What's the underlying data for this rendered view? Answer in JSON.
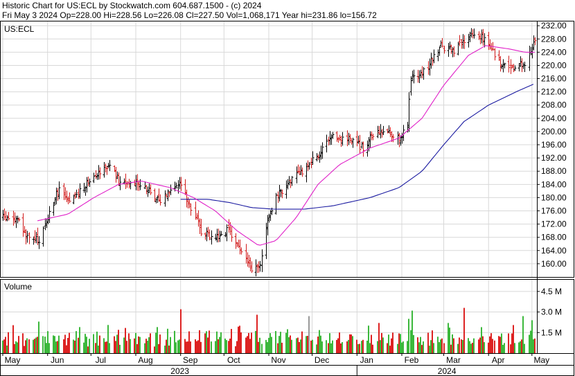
{
  "header": {
    "line1": "Historic Chart for US:ECL by Stockwatch.com 604.687.1500 - (c) 2024",
    "line2": "Fri May  3 2024   Op=228.00   Hi=228.56   Lo=226.08   Cl=227.50   Vol=1,068,171   Year hi=231.86   lo=156.72"
  },
  "chart_data": {
    "type": "ohlc",
    "symbol_label": "US:ECL",
    "volume_label": "Volume",
    "price_ticks": [
      232,
      228,
      224,
      220,
      216,
      212,
      208,
      204,
      200,
      196,
      192,
      188,
      184,
      180,
      176,
      172,
      168,
      164,
      160
    ],
    "price_range": [
      156,
      233.5
    ],
    "volume_ticks": [
      "4.5 M",
      "3.0 M",
      "1.5 M"
    ],
    "volume_tick_values": [
      4.5,
      3.0,
      1.5
    ],
    "volume_range": [
      0,
      5.4
    ],
    "months": [
      "May",
      "Jun",
      "Jul",
      "Aug",
      "Sep",
      "Oct",
      "Nov",
      "Dec",
      "Jan",
      "Feb",
      "Mar",
      "Apr",
      "May"
    ],
    "years": [
      "2023",
      "2024"
    ],
    "price_anchors": [
      {
        "date": "2023-05-01",
        "close": 174
      },
      {
        "date": "2023-05-12",
        "close": 173
      },
      {
        "date": "2023-05-17",
        "close": 168
      },
      {
        "date": "2023-05-26",
        "close": 167
      },
      {
        "date": "2023-06-01",
        "close": 174
      },
      {
        "date": "2023-06-09",
        "close": 183
      },
      {
        "date": "2023-06-16",
        "close": 178
      },
      {
        "date": "2023-06-23",
        "close": 182
      },
      {
        "date": "2023-07-03",
        "close": 187
      },
      {
        "date": "2023-07-14",
        "close": 190
      },
      {
        "date": "2023-07-21",
        "close": 184
      },
      {
        "date": "2023-08-01",
        "close": 185
      },
      {
        "date": "2023-08-10",
        "close": 182
      },
      {
        "date": "2023-08-18",
        "close": 179
      },
      {
        "date": "2023-08-25",
        "close": 183
      },
      {
        "date": "2023-09-01",
        "close": 184
      },
      {
        "date": "2023-09-08",
        "close": 177
      },
      {
        "date": "2023-09-15",
        "close": 170
      },
      {
        "date": "2023-09-25",
        "close": 168
      },
      {
        "date": "2023-10-03",
        "close": 170
      },
      {
        "date": "2023-10-10",
        "close": 166
      },
      {
        "date": "2023-10-20",
        "close": 158
      },
      {
        "date": "2023-10-26",
        "close": 159
      },
      {
        "date": "2023-10-30",
        "close": 172
      },
      {
        "date": "2023-11-06",
        "close": 180
      },
      {
        "date": "2023-11-13",
        "close": 184
      },
      {
        "date": "2023-11-24",
        "close": 188
      },
      {
        "date": "2023-12-05",
        "close": 193
      },
      {
        "date": "2023-12-15",
        "close": 198
      },
      {
        "date": "2023-12-27",
        "close": 198
      },
      {
        "date": "2024-01-05",
        "close": 195
      },
      {
        "date": "2024-01-12",
        "close": 199
      },
      {
        "date": "2024-01-22",
        "close": 200
      },
      {
        "date": "2024-01-30",
        "close": 198
      },
      {
        "date": "2024-02-05",
        "close": 202
      },
      {
        "date": "2024-02-07",
        "close": 216
      },
      {
        "date": "2024-02-16",
        "close": 218
      },
      {
        "date": "2024-02-28",
        "close": 226
      },
      {
        "date": "2024-03-08",
        "close": 224
      },
      {
        "date": "2024-03-18",
        "close": 229
      },
      {
        "date": "2024-03-27",
        "close": 229
      },
      {
        "date": "2024-04-03",
        "close": 225
      },
      {
        "date": "2024-04-10",
        "close": 220
      },
      {
        "date": "2024-04-19",
        "close": 219
      },
      {
        "date": "2024-04-26",
        "close": 221
      },
      {
        "date": "2024-05-01",
        "close": 226
      },
      {
        "date": "2024-05-03",
        "close": 227.5
      }
    ],
    "ma_short_anchors": [
      {
        "date": "2023-05-25",
        "value": 173
      },
      {
        "date": "2023-06-15",
        "value": 175
      },
      {
        "date": "2023-07-03",
        "value": 180
      },
      {
        "date": "2023-07-20",
        "value": 184
      },
      {
        "date": "2023-08-05",
        "value": 185
      },
      {
        "date": "2023-08-25",
        "value": 183
      },
      {
        "date": "2023-09-10",
        "value": 180
      },
      {
        "date": "2023-09-25",
        "value": 176
      },
      {
        "date": "2023-10-10",
        "value": 170
      },
      {
        "date": "2023-10-25",
        "value": 165.5
      },
      {
        "date": "2023-11-06",
        "value": 167
      },
      {
        "date": "2023-11-20",
        "value": 174
      },
      {
        "date": "2023-12-05",
        "value": 184
      },
      {
        "date": "2023-12-20",
        "value": 190
      },
      {
        "date": "2024-01-10",
        "value": 195
      },
      {
        "date": "2024-01-30",
        "value": 198
      },
      {
        "date": "2024-02-15",
        "value": 204
      },
      {
        "date": "2024-03-01",
        "value": 214
      },
      {
        "date": "2024-03-18",
        "value": 223
      },
      {
        "date": "2024-03-30",
        "value": 226
      },
      {
        "date": "2024-04-15",
        "value": 225
      },
      {
        "date": "2024-04-26",
        "value": 224
      },
      {
        "date": "2024-05-03",
        "value": 224
      }
    ],
    "ma_long_anchors": [
      {
        "date": "2023-09-01",
        "value": 179.5
      },
      {
        "date": "2023-09-20",
        "value": 179.5
      },
      {
        "date": "2023-10-05",
        "value": 178.5
      },
      {
        "date": "2023-10-20",
        "value": 177
      },
      {
        "date": "2023-11-05",
        "value": 176.5
      },
      {
        "date": "2023-11-25",
        "value": 176.5
      },
      {
        "date": "2023-12-15",
        "value": 177.5
      },
      {
        "date": "2024-01-10",
        "value": 180
      },
      {
        "date": "2024-01-30",
        "value": 183
      },
      {
        "date": "2024-02-15",
        "value": 188
      },
      {
        "date": "2024-03-01",
        "value": 196
      },
      {
        "date": "2024-03-15",
        "value": 203
      },
      {
        "date": "2024-04-01",
        "value": 208
      },
      {
        "date": "2024-04-20",
        "value": 212
      },
      {
        "date": "2024-05-03",
        "value": 214.5
      }
    ],
    "volume_levels_m": [
      0.9,
      1.1,
      1.4,
      0.8,
      1.2,
      1.6,
      1.0,
      1.3
    ],
    "volume_spikes": [
      {
        "date": "2023-05-26",
        "vol": 2.3
      },
      {
        "date": "2023-06-23",
        "vol": 1.9
      },
      {
        "date": "2023-07-20",
        "vol": 1.7
      },
      {
        "date": "2023-08-16",
        "vol": 1.9
      },
      {
        "date": "2023-09-01",
        "vol": 3.2
      },
      {
        "date": "2023-10-12",
        "vol": 2.0
      },
      {
        "date": "2023-10-24",
        "vol": 2.8
      },
      {
        "date": "2023-11-29",
        "vol": 2.7
      },
      {
        "date": "2024-01-16",
        "vol": 2.2
      },
      {
        "date": "2024-02-06",
        "vol": 2.5
      },
      {
        "date": "2024-02-08",
        "vol": 3.1
      },
      {
        "date": "2024-03-04",
        "vol": 2.2
      },
      {
        "date": "2024-03-15",
        "vol": 3.3
      },
      {
        "date": "2024-04-25",
        "vol": 2.7
      },
      {
        "date": "2024-05-01",
        "vol": 2.4
      }
    ],
    "colors": {
      "up_bar": "#000000",
      "down_bar": "#d11a1a",
      "ma_short": "#e020c8",
      "ma_long": "#1a1aa0",
      "vol_up": "#3cb83c",
      "vol_down": "#dd2222",
      "vol_neutral": "#999999",
      "grid": "#d8d8d8",
      "frame": "#000000"
    }
  }
}
